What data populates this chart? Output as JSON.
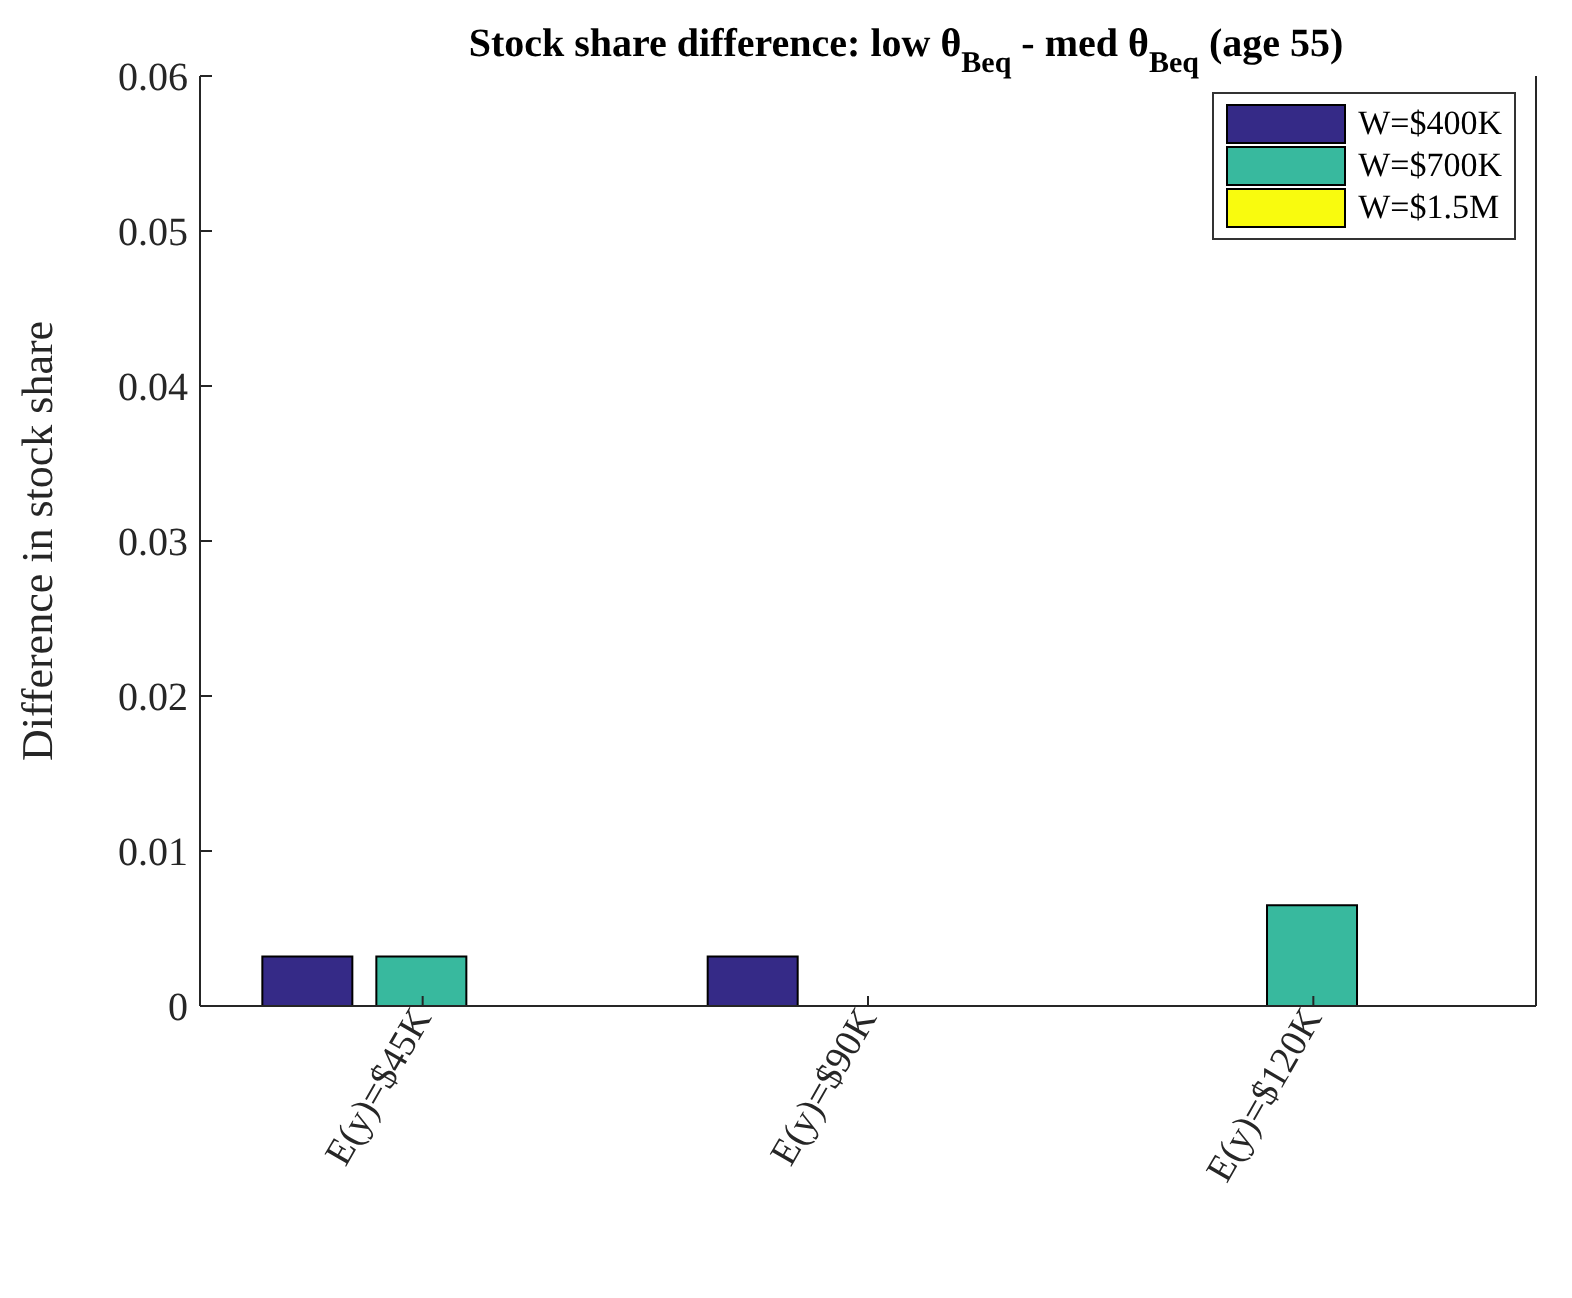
{
  "chart_data": {
    "type": "bar",
    "title": "Stock share difference: low θ$_{Beq}$ - med θ$_{Beq}$ (age 55)",
    "ylabel": "Difference in stock share",
    "categories": [
      "E(y)=$45K",
      "E(y)=$90K",
      "E(y)=$120K"
    ],
    "series": [
      {
        "name": "W=$400K",
        "color": "#352a87",
        "values": [
          0.0032,
          0.0032,
          null
        ]
      },
      {
        "name": "W=$700K",
        "color": "#38b99e",
        "values": [
          0.0032,
          null,
          0.0065
        ]
      },
      {
        "name": "W=$1.5M",
        "color": "#f9fb0e",
        "values": [
          null,
          null,
          null
        ]
      }
    ],
    "ylim": [
      0,
      0.06
    ],
    "yticks": [
      0,
      0.01,
      0.02,
      0.03,
      0.04,
      0.05,
      0.06
    ],
    "legend": "top right"
  }
}
